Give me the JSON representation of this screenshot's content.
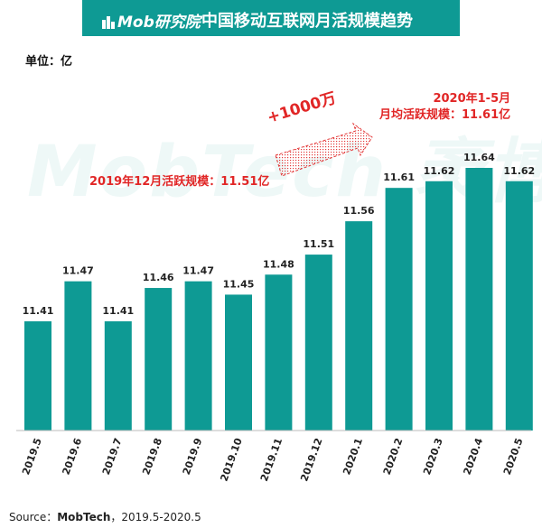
{
  "header": {
    "brand": "Mob研究院",
    "title": "中国移动互联网月活规模趋势",
    "color": "#0e9a94"
  },
  "unit_label": "单位：亿",
  "watermark": "MobTech 袤博",
  "annotations": {
    "dec_2019": "2019年12月活跃规模：11.51亿",
    "jan_may_line1": "2020年1-5月",
    "jan_may_line2": "月均活跃规模：11.61亿",
    "delta": "+1000万",
    "color": "#e12626"
  },
  "source": {
    "prefix": "Source：",
    "name": "MobTech",
    "range": "，2019.5-2020.5"
  },
  "chart_data": {
    "type": "bar",
    "categories": [
      "2019.5",
      "2019.6",
      "2019.7",
      "2019.8",
      "2019.9",
      "2019.10",
      "2019.11",
      "2019.12",
      "2020.1",
      "2020.2",
      "2020.3",
      "2020.4",
      "2020.5"
    ],
    "values": [
      11.41,
      11.47,
      11.41,
      11.46,
      11.47,
      11.45,
      11.48,
      11.51,
      11.56,
      11.61,
      11.62,
      11.64,
      11.62
    ],
    "title": "中国移动互联网月活规模趋势",
    "ylabel": "单位：亿",
    "bar_color": "#0e9a94",
    "grid": false
  }
}
